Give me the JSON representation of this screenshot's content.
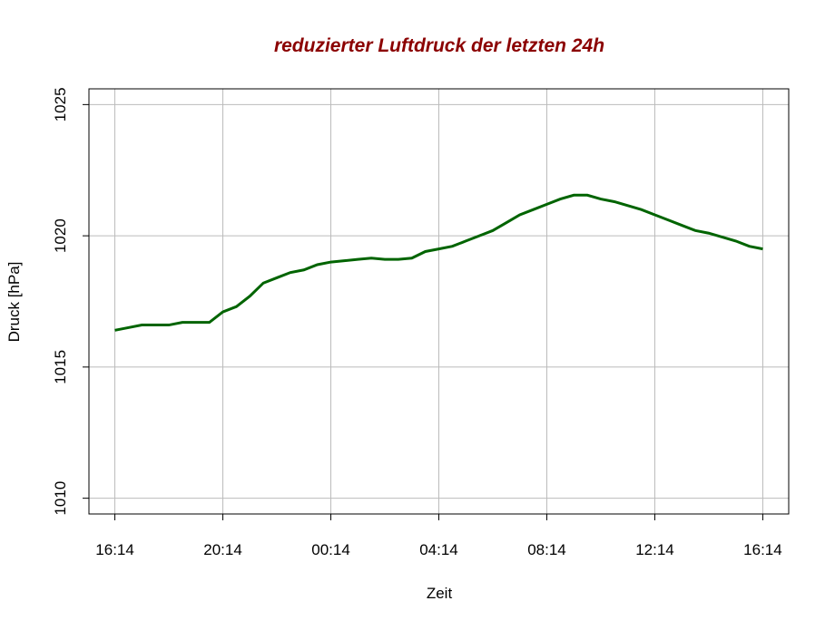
{
  "chart_data": {
    "type": "line",
    "title": "reduzierter Luftdruck der letzten 24h",
    "x_label": "Zeit",
    "y_label": "Druck [hPa]",
    "x": [
      "16:14",
      "16:44",
      "17:14",
      "17:44",
      "18:14",
      "18:44",
      "19:14",
      "19:44",
      "20:14",
      "20:44",
      "21:14",
      "21:44",
      "22:14",
      "22:44",
      "23:14",
      "23:44",
      "00:14",
      "00:44",
      "01:14",
      "01:44",
      "02:14",
      "02:44",
      "03:14",
      "03:44",
      "04:14",
      "04:44",
      "05:14",
      "05:44",
      "06:14",
      "06:44",
      "07:14",
      "07:44",
      "08:14",
      "08:44",
      "09:14",
      "09:44",
      "10:14",
      "10:44",
      "11:14",
      "11:44",
      "12:14",
      "12:44",
      "13:14",
      "13:44",
      "14:14",
      "14:44",
      "15:14",
      "15:44",
      "16:14"
    ],
    "series": [
      {
        "name": "Druck",
        "color": "#006400",
        "values": [
          1016.4,
          1016.5,
          1016.6,
          1016.6,
          1016.6,
          1016.7,
          1016.7,
          1016.7,
          1017.1,
          1017.3,
          1017.7,
          1018.2,
          1018.4,
          1018.6,
          1018.7,
          1018.9,
          1019.0,
          1019.05,
          1019.1,
          1019.15,
          1019.1,
          1019.1,
          1019.15,
          1019.4,
          1019.5,
          1019.6,
          1019.8,
          1020.0,
          1020.2,
          1020.5,
          1020.8,
          1021.0,
          1021.2,
          1021.4,
          1021.55,
          1021.55,
          1021.4,
          1021.3,
          1021.15,
          1021.0,
          1020.8,
          1020.6,
          1020.4,
          1020.2,
          1020.1,
          1019.95,
          1019.8,
          1019.6,
          1019.5
        ]
      }
    ],
    "xticks": [
      "16:14",
      "20:14",
      "00:14",
      "04:14",
      "08:14",
      "12:14",
      "16:14"
    ],
    "ylim": [
      1009.4,
      1025.6
    ],
    "yticks": [
      1010,
      1015,
      1020,
      1025
    ],
    "grid": true
  }
}
